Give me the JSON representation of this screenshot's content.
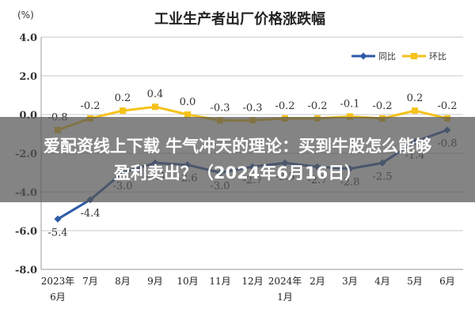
{
  "chart_data": {
    "type": "line",
    "title": "工业生产者出厂价格涨跌幅",
    "ylabel": "(%)",
    "ylim": [
      -8.0,
      4.0
    ],
    "yticks": [
      "4.0",
      "2.0",
      "0.0",
      "-2.0",
      "-4.0",
      "-6.0",
      "-8.0"
    ],
    "ytick_values": [
      4,
      2,
      0,
      -2,
      -4,
      -6,
      -8
    ],
    "categories": [
      "2023年6月",
      "7月",
      "8月",
      "9月",
      "10月",
      "11月",
      "12月",
      "2024年1月",
      "2月",
      "3月",
      "4月",
      "5月",
      "6月"
    ],
    "category_lines": [
      [
        "2023年",
        "6月"
      ],
      [
        "7月"
      ],
      [
        "8月"
      ],
      [
        "9月"
      ],
      [
        "10月"
      ],
      [
        "11月"
      ],
      [
        "12月"
      ],
      [
        "2024年",
        "1月"
      ],
      [
        "2月"
      ],
      [
        "3月"
      ],
      [
        "4月"
      ],
      [
        "5月"
      ],
      [
        "6月"
      ]
    ],
    "series": [
      {
        "name": "同比",
        "color": "#2e5aa8",
        "values": [
          -5.4,
          -4.4,
          -3.0,
          -2.5,
          -2.6,
          -3.0,
          -2.7,
          -2.5,
          -2.7,
          -2.8,
          -2.5,
          -1.4,
          -0.8
        ],
        "labels": [
          "-5.4",
          "-4.4",
          "-3.0",
          "-2.5",
          "-2.6",
          "-3.0",
          "-2.7",
          "-2.5",
          "-2.7",
          "-2.8",
          "-2.5",
          "-1.4",
          "-0.8"
        ]
      },
      {
        "name": "环比",
        "color": "#f5c21b",
        "values": [
          -0.8,
          -0.2,
          0.2,
          0.4,
          0.0,
          -0.3,
          -0.3,
          -0.2,
          -0.2,
          -0.1,
          -0.2,
          0.2,
          -0.2
        ],
        "labels": [
          "-0.8",
          "-0.2",
          "0.2",
          "0.4",
          "0.0",
          "-0.3",
          "-0.3",
          "-0.2",
          "-0.2",
          "-0.1",
          "-0.2",
          "0.2",
          "-0.2"
        ]
      }
    ],
    "grid": true,
    "legend": "top-right"
  },
  "overlay": {
    "line1": "爱配资线上下载 牛气冲天的理论：买到牛股怎么能够",
    "line2": "盈利卖出？（2024年6月16日）"
  }
}
